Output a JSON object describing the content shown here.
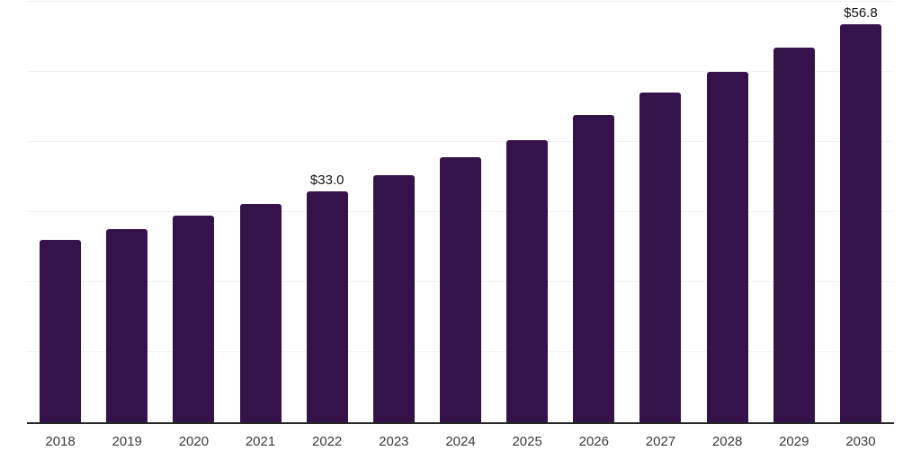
{
  "chart_data": {
    "type": "bar",
    "title": "",
    "xlabel": "",
    "ylabel": "",
    "categories": [
      "2018",
      "2019",
      "2020",
      "2021",
      "2022",
      "2023",
      "2024",
      "2025",
      "2026",
      "2027",
      "2028",
      "2029",
      "2030"
    ],
    "values": [
      26.0,
      27.6,
      29.5,
      31.1,
      33.0,
      35.2,
      37.8,
      40.3,
      43.9,
      47.0,
      50.0,
      53.5,
      56.8
    ],
    "annotations": [
      {
        "category": "2022",
        "text": "$33.0"
      },
      {
        "category": "2030",
        "text": "$56.8"
      }
    ],
    "ylim": [
      0,
      60
    ],
    "gridline_step": 10,
    "grid": "horizontal",
    "y_axis_labels_visible": false,
    "legend_position": "none",
    "colors": {
      "bar": "#36124b",
      "axis_line": "#262626",
      "gridline": "#f2f2f2",
      "x_tick_label": "#3b3b3b",
      "data_label": "#111111",
      "background": "#ffffff"
    }
  }
}
